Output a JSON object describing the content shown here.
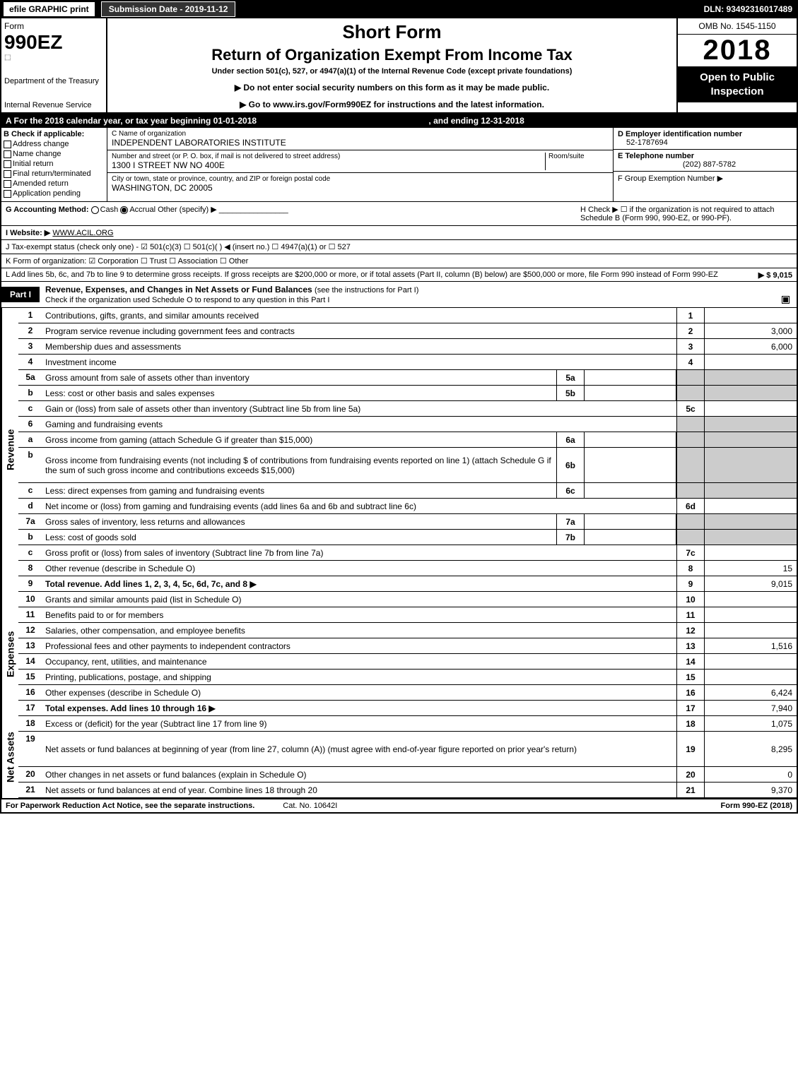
{
  "top_bar": {
    "efile": "efile GRAPHIC print",
    "submission_date_label": "Submission Date - 2019-11-12",
    "dln": "DLN: 93492316017489"
  },
  "header": {
    "form_word": "Form",
    "form_number": "990EZ",
    "dept": "Department of the Treasury",
    "irs": "Internal Revenue Service",
    "short_form": "Short Form",
    "main_title": "Return of Organization Exempt From Income Tax",
    "subtitle": "Under section 501(c), 527, or 4947(a)(1) of the Internal Revenue Code (except private foundations)",
    "note_ssn": "▶ Do not enter social security numbers on this form as it may be made public.",
    "note_link": "▶ Go to www.irs.gov/Form990EZ for instructions and the latest information.",
    "omb": "OMB No. 1545-1150",
    "year": "2018",
    "open_public": "Open to Public Inspection"
  },
  "period": {
    "text_a": "A For the 2018 calendar year, or tax year beginning 01-01-2018",
    "text_b": ", and ending 12-31-2018"
  },
  "box_b": {
    "label": "B Check if applicable:",
    "items": [
      "Address change",
      "Name change",
      "Initial return",
      "Final return/terminated",
      "Amended return",
      "Application pending"
    ]
  },
  "box_c": {
    "name_label": "C Name of organization",
    "name": "INDEPENDENT LABORATORIES INSTITUTE",
    "addr_label": "Number and street (or P. O. box, if mail is not delivered to street address)",
    "addr": "1300 I STREET NW NO 400E",
    "room_label": "Room/suite",
    "city_label": "City or town, state or province, country, and ZIP or foreign postal code",
    "city": "WASHINGTON, DC  20005"
  },
  "box_d": {
    "ein_label": "D Employer identification number",
    "ein": "52-1787694",
    "phone_label": "E Telephone number",
    "phone": "(202) 887-5782",
    "group_label": "F Group Exemption Number  ▶"
  },
  "row_g": {
    "label": "G Accounting Method:",
    "cash": "Cash",
    "accrual": "Accrual",
    "other": "Other (specify) ▶",
    "h_text": "H  Check ▶ ☐ if the organization is not required to attach Schedule B (Form 990, 990-EZ, or 990-PF)."
  },
  "row_i": {
    "label": "I Website: ▶",
    "value": "WWW.ACIL.ORG"
  },
  "row_j": {
    "text": "J Tax-exempt status (check only one) - ☑ 501(c)(3)  ☐ 501(c)(  ) ◀ (insert no.)  ☐ 4947(a)(1) or  ☐ 527"
  },
  "row_k": {
    "text": "K Form of organization:  ☑ Corporation  ☐ Trust  ☐ Association  ☐ Other"
  },
  "row_l": {
    "text": "L Add lines 5b, 6c, and 7b to line 9 to determine gross receipts. If gross receipts are $200,000 or more, or if total assets (Part II, column (B) below) are $500,000 or more, file Form 990 instead of Form 990-EZ",
    "amount": "▶ $ 9,015"
  },
  "part1": {
    "tag": "Part I",
    "title": "Revenue, Expenses, and Changes in Net Assets or Fund Balances",
    "subtitle": "(see the instructions for Part I)",
    "check_text": "Check if the organization used Schedule O to respond to any question in this Part I"
  },
  "sections": {
    "revenue": {
      "label": "Revenue",
      "lines": [
        {
          "n": "1",
          "desc": "Contributions, gifts, grants, and similar amounts received",
          "box": "1",
          "val": ""
        },
        {
          "n": "2",
          "desc": "Program service revenue including government fees and contracts",
          "box": "2",
          "val": "3,000"
        },
        {
          "n": "3",
          "desc": "Membership dues and assessments",
          "box": "3",
          "val": "6,000"
        },
        {
          "n": "4",
          "desc": "Investment income",
          "box": "4",
          "val": ""
        },
        {
          "n": "5a",
          "desc": "Gross amount from sale of assets other than inventory",
          "sub": "5a"
        },
        {
          "n": "b",
          "desc": "Less: cost or other basis and sales expenses",
          "sub": "5b"
        },
        {
          "n": "c",
          "desc": "Gain or (loss) from sale of assets other than inventory (Subtract line 5b from line 5a)",
          "box": "5c",
          "val": ""
        },
        {
          "n": "6",
          "desc": "Gaming and fundraising events",
          "grey_end": true
        },
        {
          "n": "a",
          "desc": "Gross income from gaming (attach Schedule G if greater than $15,000)",
          "sub": "6a"
        },
        {
          "n": "b",
          "desc": "Gross income from fundraising events (not including $                   of contributions from fundraising events reported on line 1) (attach Schedule G if the sum of such gross income and contributions exceeds $15,000)",
          "sub": "6b",
          "tall": true
        },
        {
          "n": "c",
          "desc": "Less: direct expenses from gaming and fundraising events",
          "sub": "6c"
        },
        {
          "n": "d",
          "desc": "Net income or (loss) from gaming and fundraising events (add lines 6a and 6b and subtract line 6c)",
          "box": "6d",
          "val": ""
        },
        {
          "n": "7a",
          "desc": "Gross sales of inventory, less returns and allowances",
          "sub": "7a"
        },
        {
          "n": "b",
          "desc": "Less: cost of goods sold",
          "sub": "7b"
        },
        {
          "n": "c",
          "desc": "Gross profit or (loss) from sales of inventory (Subtract line 7b from line 7a)",
          "box": "7c",
          "val": ""
        },
        {
          "n": "8",
          "desc": "Other revenue (describe in Schedule O)",
          "box": "8",
          "val": "15"
        },
        {
          "n": "9",
          "desc": "Total revenue. Add lines 1, 2, 3, 4, 5c, 6d, 7c, and 8",
          "box": "9",
          "val": "9,015",
          "bold": true,
          "arrow": true
        }
      ]
    },
    "expenses": {
      "label": "Expenses",
      "lines": [
        {
          "n": "10",
          "desc": "Grants and similar amounts paid (list in Schedule O)",
          "box": "10",
          "val": ""
        },
        {
          "n": "11",
          "desc": "Benefits paid to or for members",
          "box": "11",
          "val": ""
        },
        {
          "n": "12",
          "desc": "Salaries, other compensation, and employee benefits",
          "box": "12",
          "val": ""
        },
        {
          "n": "13",
          "desc": "Professional fees and other payments to independent contractors",
          "box": "13",
          "val": "1,516"
        },
        {
          "n": "14",
          "desc": "Occupancy, rent, utilities, and maintenance",
          "box": "14",
          "val": ""
        },
        {
          "n": "15",
          "desc": "Printing, publications, postage, and shipping",
          "box": "15",
          "val": ""
        },
        {
          "n": "16",
          "desc": "Other expenses (describe in Schedule O)",
          "box": "16",
          "val": "6,424"
        },
        {
          "n": "17",
          "desc": "Total expenses. Add lines 10 through 16",
          "box": "17",
          "val": "7,940",
          "bold": true,
          "arrow": true
        }
      ]
    },
    "netassets": {
      "label": "Net Assets",
      "lines": [
        {
          "n": "18",
          "desc": "Excess or (deficit) for the year (Subtract line 17 from line 9)",
          "box": "18",
          "val": "1,075"
        },
        {
          "n": "19",
          "desc": "Net assets or fund balances at beginning of year (from line 27, column (A)) (must agree with end-of-year figure reported on prior year's return)",
          "box": "19",
          "val": "8,295",
          "tall": true
        },
        {
          "n": "20",
          "desc": "Other changes in net assets or fund balances (explain in Schedule O)",
          "box": "20",
          "val": "0"
        },
        {
          "n": "21",
          "desc": "Net assets or fund balances at end of year. Combine lines 18 through 20",
          "box": "21",
          "val": "9,370"
        }
      ]
    }
  },
  "footer": {
    "left": "For Paperwork Reduction Act Notice, see the separate instructions.",
    "mid": "Cat. No. 10642I",
    "right": "Form 990-EZ (2018)"
  },
  "colors": {
    "black": "#000000",
    "white": "#ffffff",
    "grey_fill": "#cccccc"
  }
}
